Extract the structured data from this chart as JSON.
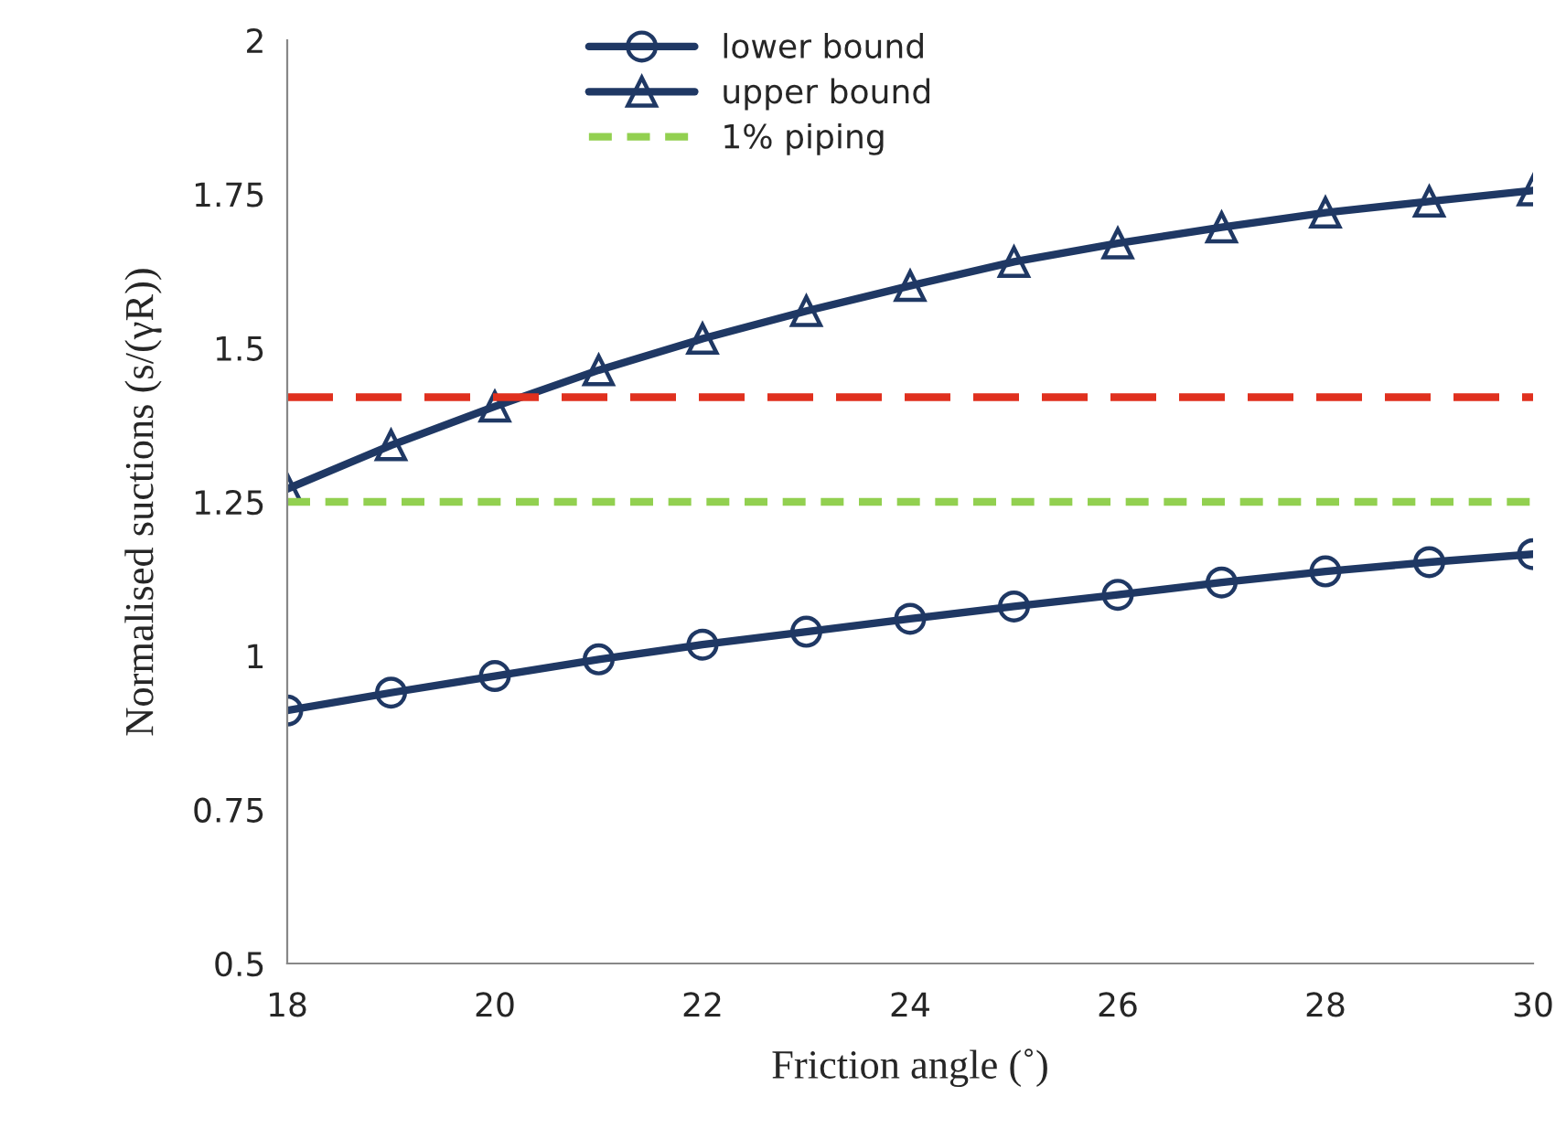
{
  "chart_data": {
    "type": "line",
    "xlabel": "Friction angle (˚)",
    "ylabel": "Normalised suctions (s/(γR))",
    "x": [
      18,
      19,
      20,
      21,
      22,
      23,
      24,
      25,
      26,
      27,
      28,
      29,
      30
    ],
    "series": [
      {
        "name": "lower bound",
        "color": "#1f3864",
        "marker": "circle",
        "line_style": "solid",
        "values": [
          0.911,
          0.94,
          0.967,
          0.994,
          1.018,
          1.039,
          1.06,
          1.08,
          1.099,
          1.119,
          1.137,
          1.152,
          1.165
        ]
      },
      {
        "name": "upper bound",
        "color": "#1f3864",
        "marker": "triangle",
        "line_style": "solid",
        "values": [
          1.271,
          1.342,
          1.405,
          1.464,
          1.515,
          1.56,
          1.601,
          1.64,
          1.67,
          1.696,
          1.72,
          1.738,
          1.756
        ]
      },
      {
        "name": "1% piping",
        "color": "#92d050",
        "marker": "none",
        "line_style": "dashed",
        "x": [
          18,
          30
        ],
        "values": [
          1.25,
          1.25
        ]
      }
    ],
    "ref_lines": [
      {
        "axis": "y",
        "value": 1.42,
        "color": "#e0301e",
        "line_style": "dashed"
      }
    ],
    "xlim": [
      18,
      30
    ],
    "xticks": [
      18,
      20,
      22,
      24,
      26,
      28,
      30
    ],
    "ylim": [
      0.5,
      2
    ],
    "yticks": [
      0.5,
      0.75,
      1,
      1.25,
      1.5,
      1.75,
      2
    ],
    "grid": false,
    "legend": "top"
  }
}
